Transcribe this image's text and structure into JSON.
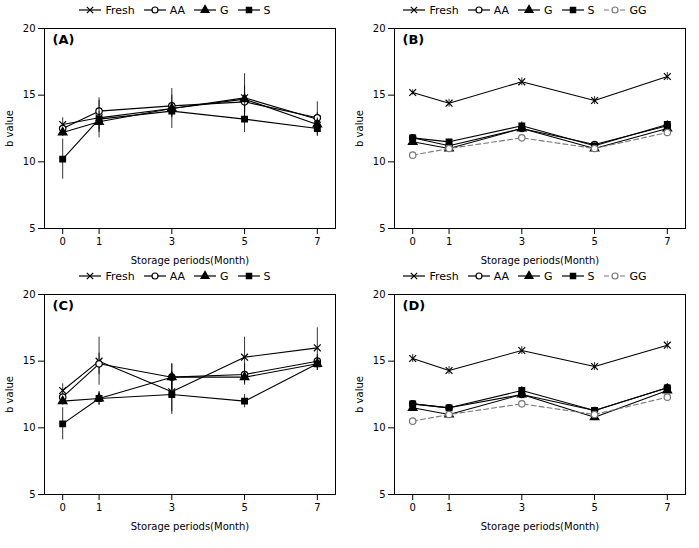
{
  "chart_data": [
    {
      "type": "line",
      "title": "(A)",
      "xlabel": "Storage periods(Month)",
      "ylabel": "b value",
      "x": [
        0,
        1,
        3,
        5,
        7
      ],
      "xlim": [
        -0.5,
        7.5
      ],
      "xticks": [
        0,
        1,
        3,
        5,
        7
      ],
      "ylim": [
        5,
        20
      ],
      "yticks": [
        5,
        10,
        15,
        20
      ],
      "grid": false,
      "legend": "top",
      "series": [
        {
          "name": "Fresh",
          "color": "#000000",
          "marker": "x",
          "line_style": "solid",
          "values": [
            12.8,
            13.3,
            14.0,
            14.8,
            13.2
          ],
          "yerr": [
            0.5,
            1.5,
            1.5,
            1.8,
            1.3
          ]
        },
        {
          "name": "AA",
          "color": "#000000",
          "marker": "circle-open",
          "line_style": "solid",
          "values": [
            12.5,
            13.8,
            14.2,
            14.5,
            13.3
          ],
          "yerr": [
            0.3,
            0.8,
            0.8,
            0.7,
            0.4
          ]
        },
        {
          "name": "G",
          "color": "#000000",
          "marker": "triangle",
          "line_style": "solid",
          "values": [
            12.2,
            13.0,
            14.0,
            14.7,
            12.8
          ],
          "yerr": [
            0.3,
            0.8,
            0.5,
            1.0,
            0.5
          ]
        },
        {
          "name": "S",
          "color": "#000000",
          "marker": "square",
          "line_style": "solid",
          "values": [
            10.2,
            13.2,
            13.8,
            13.2,
            12.5
          ],
          "yerr": [
            1.5,
            0.8,
            0.5,
            1.0,
            0.5
          ]
        }
      ]
    },
    {
      "type": "line",
      "title": "(B)",
      "xlabel": "Storage periods(Month)",
      "ylabel": "b value",
      "x": [
        0,
        1,
        3,
        5,
        7
      ],
      "xlim": [
        -0.5,
        7.5
      ],
      "xticks": [
        0,
        1,
        3,
        5,
        7
      ],
      "ylim": [
        5,
        20
      ],
      "yticks": [
        5,
        10,
        15,
        20
      ],
      "grid": false,
      "legend": "top",
      "series": [
        {
          "name": "Fresh",
          "color": "#000000",
          "marker": "x",
          "line_style": "solid",
          "values": [
            15.2,
            14.4,
            16.0,
            14.6,
            16.4
          ],
          "yerr": [
            0.2,
            0.3,
            0.3,
            0.3,
            0.3
          ]
        },
        {
          "name": "AA",
          "color": "#000000",
          "marker": "circle-open",
          "line_style": "solid",
          "values": [
            11.8,
            11.2,
            12.5,
            11.3,
            12.7
          ],
          "yerr": [
            0.2,
            0.2,
            0.3,
            0.2,
            0.3
          ]
        },
        {
          "name": "G",
          "color": "#000000",
          "marker": "triangle",
          "line_style": "solid",
          "values": [
            11.5,
            11.0,
            12.5,
            11.0,
            12.5
          ],
          "yerr": [
            0.2,
            0.2,
            0.2,
            0.2,
            0.2
          ]
        },
        {
          "name": "S",
          "color": "#000000",
          "marker": "square",
          "line_style": "solid",
          "values": [
            11.8,
            11.5,
            12.7,
            11.2,
            12.8
          ],
          "yerr": [
            0.2,
            0.2,
            0.3,
            0.2,
            0.3
          ]
        },
        {
          "name": "GG",
          "color": "#777777",
          "marker": "circle-open",
          "line_style": "dashed",
          "values": [
            10.5,
            11.0,
            11.8,
            11.0,
            12.2
          ],
          "yerr": [
            0.2,
            0.2,
            0.2,
            0.2,
            0.2
          ]
        }
      ]
    },
    {
      "type": "line",
      "title": "(C)",
      "xlabel": "Storage periods(Month)",
      "ylabel": "b value",
      "x": [
        0,
        1,
        3,
        5,
        7
      ],
      "xlim": [
        -0.5,
        7.5
      ],
      "xticks": [
        0,
        1,
        3,
        5,
        7
      ],
      "ylim": [
        5,
        20
      ],
      "yticks": [
        5,
        10,
        15,
        20
      ],
      "grid": false,
      "legend": "top",
      "series": [
        {
          "name": "Fresh",
          "color": "#000000",
          "marker": "x",
          "line_style": "solid",
          "values": [
            12.8,
            15.0,
            12.7,
            15.3,
            16.0
          ],
          "yerr": [
            0.5,
            1.8,
            1.5,
            1.5,
            1.5
          ]
        },
        {
          "name": "AA",
          "color": "#000000",
          "marker": "circle-open",
          "line_style": "solid",
          "values": [
            12.3,
            14.8,
            13.8,
            14.0,
            15.0
          ],
          "yerr": [
            0.3,
            0.8,
            1.0,
            0.8,
            0.5
          ]
        },
        {
          "name": "G",
          "color": "#000000",
          "marker": "triangle",
          "line_style": "solid",
          "values": [
            12.0,
            12.2,
            13.8,
            13.8,
            14.8
          ],
          "yerr": [
            0.3,
            0.5,
            1.0,
            0.5,
            0.5
          ]
        },
        {
          "name": "S",
          "color": "#000000",
          "marker": "square",
          "line_style": "solid",
          "values": [
            10.3,
            12.2,
            12.5,
            12.0,
            14.8
          ],
          "yerr": [
            1.2,
            0.5,
            1.5,
            0.5,
            0.5
          ]
        }
      ]
    },
    {
      "type": "line",
      "title": "(D)",
      "xlabel": "Storage periods(Month)",
      "ylabel": "b value",
      "x": [
        0,
        1,
        3,
        5,
        7
      ],
      "xlim": [
        -0.5,
        7.5
      ],
      "xticks": [
        0,
        1,
        3,
        5,
        7
      ],
      "ylim": [
        5,
        20
      ],
      "yticks": [
        5,
        10,
        15,
        20
      ],
      "grid": false,
      "legend": "top",
      "series": [
        {
          "name": "Fresh",
          "color": "#000000",
          "marker": "x",
          "line_style": "solid",
          "values": [
            15.2,
            14.3,
            15.8,
            14.6,
            16.2
          ],
          "yerr": [
            0.3,
            0.3,
            0.3,
            0.3,
            0.3
          ]
        },
        {
          "name": "AA",
          "color": "#000000",
          "marker": "circle-open",
          "line_style": "solid",
          "values": [
            11.8,
            11.5,
            12.5,
            11.3,
            13.0
          ],
          "yerr": [
            0.2,
            0.2,
            0.3,
            0.2,
            0.3
          ]
        },
        {
          "name": "G",
          "color": "#000000",
          "marker": "triangle",
          "line_style": "solid",
          "values": [
            11.5,
            11.0,
            12.5,
            10.8,
            12.8
          ],
          "yerr": [
            0.2,
            0.2,
            0.2,
            0.2,
            0.2
          ]
        },
        {
          "name": "S",
          "color": "#000000",
          "marker": "square",
          "line_style": "solid",
          "values": [
            11.8,
            11.5,
            12.8,
            11.3,
            13.0
          ],
          "yerr": [
            0.2,
            0.2,
            0.3,
            0.2,
            0.3
          ]
        },
        {
          "name": "GG",
          "color": "#777777",
          "marker": "circle-open",
          "line_style": "dashed",
          "values": [
            10.5,
            11.0,
            11.8,
            11.0,
            12.3
          ],
          "yerr": [
            0.2,
            0.2,
            0.2,
            0.2,
            0.2
          ]
        }
      ]
    }
  ]
}
